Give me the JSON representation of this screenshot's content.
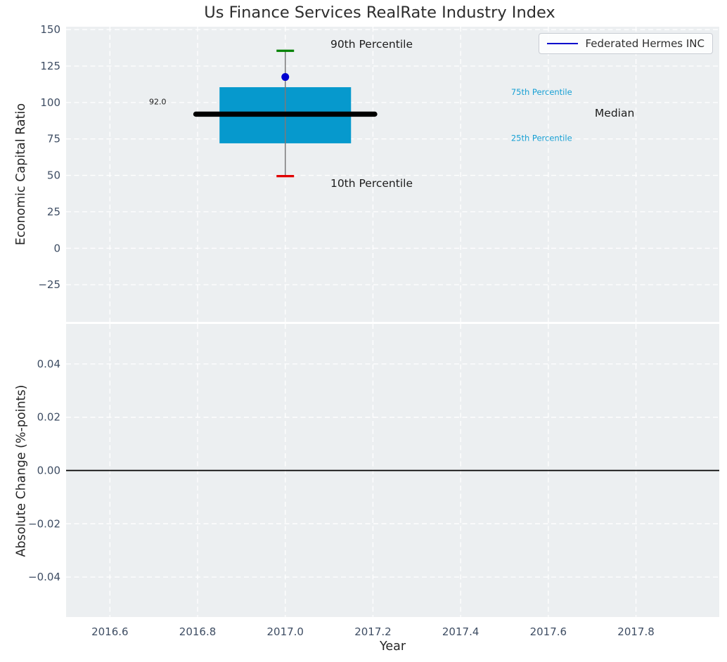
{
  "legend": {
    "label": "Federated Hermes INC",
    "line_color": "#0000cc"
  },
  "chart_data": {
    "type": "boxplot",
    "title": "Us Finance Services RealRate Industry Index",
    "xlabel": "Year",
    "xlim": [
      2016.5,
      2017.99
    ],
    "xticks": [
      2016.6,
      2016.8,
      2017.0,
      2017.2,
      2017.4,
      2017.6,
      2017.8
    ],
    "xtick_labels": [
      "2016.6",
      "2016.8",
      "2017.0",
      "2017.2",
      "2017.4",
      "2017.6",
      "2017.8"
    ],
    "grid": true,
    "legend_position": "upper right",
    "colors": {
      "panel_background": "#eceff1",
      "grid": "#ffffff",
      "box_fill": "#0699cd",
      "median": "#000000",
      "whisker": "#7a7a7a",
      "cap_90th": "#008000",
      "cap_10th": "#e10000",
      "company_point": "#0000d0",
      "percentile_text": "#18a0d4",
      "annotation_text": "#1c1c1c",
      "tick_text": "#3e4d63",
      "zero_line": "#000000"
    },
    "panels": [
      {
        "name": "economic-capital-ratio",
        "ylabel": "Economic Capital Ratio",
        "ylim": [
          -50.5,
          152
        ],
        "yticks": [
          150,
          125,
          100,
          75,
          50,
          25,
          0,
          -25
        ],
        "ytick_labels": [
          "150",
          "125",
          "100",
          "75",
          "50",
          "25",
          "0",
          "−25"
        ],
        "box": {
          "x": 2017.0,
          "p10": 49.5,
          "p25": 72.0,
          "median": 92.0,
          "p75": 110.5,
          "p90": 135.5,
          "box_halfwidth_years": 0.15,
          "median_halfwidth_years": 0.204,
          "cap_halfwidth_years": 0.02
        },
        "company_point": {
          "series": "Federated Hermes INC",
          "x": 2017.0,
          "y": 117.5
        },
        "annotations": [
          {
            "text": "90th Percentile",
            "x": 2017.103,
            "y": 140.0,
            "size": 15.5,
            "color_key": "annotation_text",
            "align": "left"
          },
          {
            "text": "10th Percentile",
            "x": 2017.103,
            "y": 44.5,
            "size": 15.5,
            "color_key": "annotation_text",
            "align": "left"
          },
          {
            "text": "75th Percentile",
            "x": 2017.515,
            "y": 107.2,
            "size": 11.5,
            "color_key": "percentile_text",
            "align": "left"
          },
          {
            "text": "Median",
            "x": 2017.706,
            "y": 92.7,
            "size": 15.5,
            "color_key": "annotation_text",
            "align": "left"
          },
          {
            "text": "25th Percentile",
            "x": 2017.515,
            "y": 75.6,
            "size": 11.5,
            "color_key": "percentile_text",
            "align": "left"
          },
          {
            "text": "92.0",
            "x": 2016.709,
            "y": 100.4,
            "size": 11,
            "color_key": "annotation_text",
            "align": "center"
          }
        ]
      },
      {
        "name": "absolute-change",
        "ylabel": "Absolute Change (%-points)",
        "ylim": [
          -0.055,
          0.055
        ],
        "yticks": [
          0.04,
          0.02,
          0.0,
          -0.02,
          -0.04
        ],
        "ytick_labels": [
          "0.04",
          "0.02",
          "0.00",
          "−0.02",
          "−0.04"
        ],
        "zero_line": true
      }
    ]
  }
}
